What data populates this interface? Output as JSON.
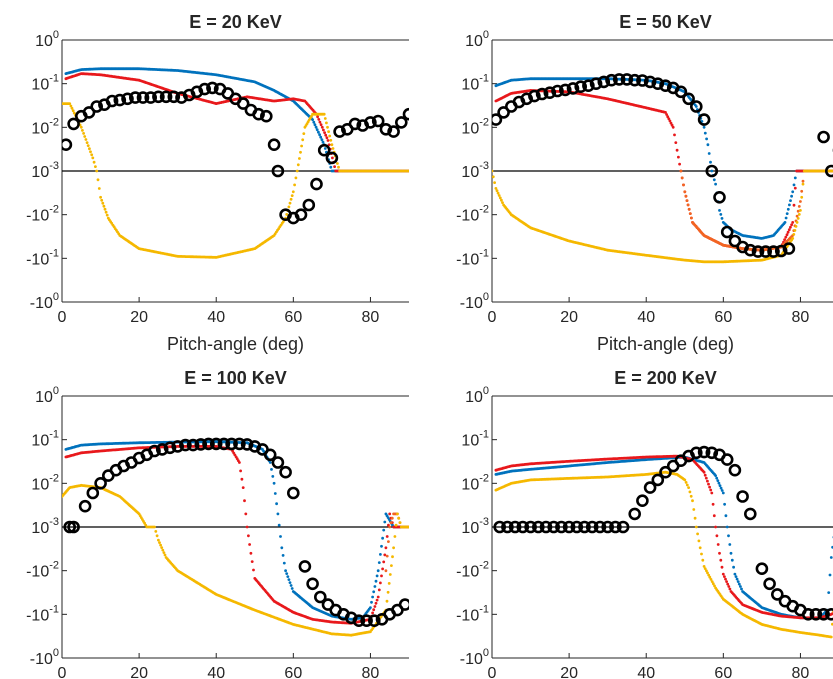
{
  "figure": {
    "xlabel": "Pitch-angle (deg)",
    "x_ticks": [
      "0",
      "20",
      "40",
      "60",
      "80"
    ],
    "y_ticks": [
      {
        "base": "10",
        "exp": "0"
      },
      {
        "base": "10",
        "exp": "-1"
      },
      {
        "base": "10",
        "exp": "-2"
      },
      {
        "base": "10",
        "exp": "-3"
      },
      {
        "base": "-10",
        "exp": "-2"
      },
      {
        "base": "-10",
        "exp": "-1"
      },
      {
        "base": "-10",
        "exp": "0"
      }
    ],
    "colors": {
      "blue": "#0072bd",
      "red": "#e8191c",
      "orange": "#f26522",
      "yellow": "#f5b800",
      "markers": "#000000",
      "zero_line": "#000000"
    }
  },
  "chart_data": [
    {
      "type": "scatter",
      "title": "E = 20 KeV",
      "xlabel": "Pitch-angle (deg)",
      "ylabel": "",
      "xlim": [
        0,
        90
      ],
      "ylim_log_symmetric": [
        -1,
        1
      ],
      "yscale": "symmetric log, linear threshold 1e-3",
      "series": [
        {
          "color": "blue",
          "style": "dots",
          "x": [
            1,
            5,
            10,
            20,
            30,
            40,
            50,
            55,
            60,
            65,
            68,
            70,
            90
          ],
          "y": [
            0.17,
            0.21,
            0.22,
            0.22,
            0.2,
            0.16,
            0.11,
            0.07,
            0.04,
            0.015,
            0.004,
            0.001,
            0.001
          ]
        },
        {
          "color": "red",
          "style": "dots",
          "x": [
            1,
            5,
            10,
            20,
            30,
            40,
            48,
            55,
            60,
            63,
            66,
            69,
            71,
            90
          ],
          "y": [
            0.13,
            0.17,
            0.16,
            0.12,
            0.06,
            0.035,
            0.05,
            0.04,
            0.045,
            0.04,
            0.02,
            0.005,
            0.001,
            0.001
          ]
        },
        {
          "color": "yellow",
          "style": "dots",
          "x": [
            0,
            2,
            5,
            8,
            9,
            10,
            12,
            15,
            20,
            30,
            40,
            50,
            55,
            58,
            60,
            61,
            63,
            65,
            68,
            70,
            72,
            90
          ],
          "y": [
            0.035,
            0.035,
            0.01,
            0.002,
            0.001,
            -0.004,
            -0.012,
            -0.03,
            -0.06,
            -0.09,
            -0.095,
            -0.06,
            -0.03,
            -0.012,
            -0.003,
            0.001,
            0.01,
            0.02,
            0.02,
            0.004,
            0.001,
            0.001
          ]
        },
        {
          "color": "markers",
          "style": "circles",
          "x": [
            1,
            3,
            5,
            7,
            9,
            11,
            13,
            15,
            17,
            19,
            21,
            23,
            25,
            27,
            29,
            31,
            33,
            35,
            37,
            39,
            41,
            43,
            45,
            47,
            49,
            51,
            53,
            55,
            56,
            58,
            60,
            62,
            64,
            66,
            68,
            70,
            72,
            74,
            76,
            78,
            80,
            82,
            84,
            86,
            88,
            90
          ],
          "y": [
            0.004,
            0.012,
            0.018,
            0.022,
            0.03,
            0.033,
            0.04,
            0.042,
            0.045,
            0.048,
            0.048,
            0.048,
            0.05,
            0.05,
            0.05,
            0.048,
            0.055,
            0.065,
            0.075,
            0.08,
            0.075,
            0.06,
            0.045,
            0.035,
            0.025,
            0.02,
            0.018,
            0.004,
            0.001,
            -0.01,
            -0.012,
            -0.01,
            -0.006,
            -0.002,
            0.003,
            0.002,
            0.008,
            0.009,
            0.012,
            0.011,
            0.013,
            0.014,
            0.009,
            0.008,
            0.013,
            0.02
          ]
        }
      ]
    },
    {
      "type": "scatter",
      "title": "E = 50 KeV",
      "xlabel": "Pitch-angle (deg)",
      "ylabel": "",
      "xlim": [
        0,
        90
      ],
      "ylim_log_symmetric": [
        -1,
        1
      ],
      "yscale": "symmetric log, linear threshold 1e-3",
      "series": [
        {
          "color": "blue",
          "style": "dots",
          "x": [
            1,
            5,
            10,
            20,
            30,
            40,
            45,
            50,
            53,
            55,
            56,
            57,
            58,
            59,
            60,
            62,
            65,
            70,
            73,
            76,
            78,
            79,
            90
          ],
          "y": [
            0.09,
            0.12,
            0.13,
            0.13,
            0.13,
            0.12,
            0.1,
            0.065,
            0.03,
            0.01,
            0.004,
            0.001,
            -0.002,
            -0.008,
            -0.015,
            -0.022,
            -0.03,
            -0.035,
            -0.03,
            -0.015,
            -0.003,
            0.001,
            0.001
          ]
        },
        {
          "color": "red",
          "style": "dots",
          "x": [
            1,
            5,
            10,
            20,
            30,
            40,
            45,
            47,
            48,
            49,
            50,
            52,
            55,
            60,
            65,
            70,
            75,
            78,
            79,
            90
          ],
          "y": [
            0.04,
            0.06,
            0.07,
            0.065,
            0.045,
            0.028,
            0.022,
            0.01,
            0.003,
            0.001,
            -0.003,
            -0.015,
            -0.03,
            -0.05,
            -0.06,
            -0.065,
            -0.055,
            -0.015,
            0.001,
            0.001
          ]
        },
        {
          "color": "orange",
          "style": "dots",
          "x": [
            49,
            50,
            52,
            55,
            60,
            65,
            70,
            75,
            78,
            80,
            81,
            90
          ],
          "y": [
            0.001,
            -0.003,
            -0.015,
            -0.03,
            -0.05,
            -0.06,
            -0.065,
            -0.055,
            -0.03,
            -0.005,
            0.001,
            0.001
          ]
        },
        {
          "color": "yellow",
          "style": "dots",
          "x": [
            0,
            1,
            3,
            5,
            10,
            20,
            30,
            40,
            50,
            55,
            60,
            70,
            75,
            78,
            80,
            81,
            82,
            90
          ],
          "y": [
            0.001,
            -0.0025,
            -0.006,
            -0.01,
            -0.02,
            -0.04,
            -0.065,
            -0.085,
            -0.11,
            -0.12,
            -0.12,
            -0.11,
            -0.085,
            -0.035,
            -0.008,
            0.001,
            0.001,
            0.001
          ]
        },
        {
          "color": "markers",
          "style": "circles",
          "x": [
            1,
            3,
            5,
            7,
            9,
            11,
            13,
            15,
            17,
            19,
            21,
            23,
            25,
            27,
            29,
            31,
            33,
            35,
            37,
            39,
            41,
            43,
            45,
            47,
            49,
            51,
            53,
            55,
            57,
            59,
            61,
            63,
            65,
            67,
            69,
            71,
            73,
            75,
            77,
            86,
            88,
            90
          ],
          "y": [
            0.015,
            0.022,
            0.03,
            0.038,
            0.045,
            0.052,
            0.058,
            0.062,
            0.068,
            0.072,
            0.078,
            0.085,
            0.09,
            0.1,
            0.11,
            0.12,
            0.125,
            0.125,
            0.12,
            0.118,
            0.11,
            0.1,
            0.09,
            0.08,
            0.065,
            0.045,
            0.03,
            0.015,
            0.001,
            -0.004,
            -0.025,
            -0.04,
            -0.055,
            -0.065,
            -0.07,
            -0.07,
            -0.07,
            -0.068,
            -0.06,
            0.006,
            0.001,
            0.003
          ]
        }
      ]
    },
    {
      "type": "scatter",
      "title": "E = 100 KeV",
      "xlabel": "Pitch-angle (deg)",
      "ylabel": "",
      "xlim": [
        0,
        90
      ],
      "ylim_log_symmetric": [
        -1,
        1
      ],
      "yscale": "symmetric log, linear threshold 1e-3",
      "series": [
        {
          "color": "blue",
          "style": "dots",
          "x": [
            1,
            5,
            10,
            20,
            30,
            40,
            48,
            52,
            54,
            55,
            56,
            57,
            58,
            60,
            65,
            70,
            75,
            78,
            80,
            82,
            84,
            86,
            88,
            90
          ],
          "y": [
            0.06,
            0.075,
            0.08,
            0.085,
            0.088,
            0.09,
            0.085,
            0.06,
            0.03,
            0.01,
            0.002,
            -0.003,
            -0.01,
            -0.03,
            -0.07,
            -0.11,
            -0.13,
            -0.12,
            -0.07,
            -0.01,
            0.002,
            0.001,
            0.001,
            0.001
          ]
        },
        {
          "color": "red",
          "style": "dots",
          "x": [
            1,
            5,
            10,
            20,
            30,
            40,
            44,
            46,
            47,
            48,
            49,
            50,
            55,
            60,
            65,
            70,
            75,
            80,
            82,
            84,
            85,
            86,
            88,
            90
          ],
          "y": [
            0.04,
            0.05,
            0.055,
            0.065,
            0.07,
            0.07,
            0.06,
            0.03,
            0.008,
            0.001,
            -0.004,
            -0.015,
            -0.05,
            -0.09,
            -0.13,
            -0.15,
            -0.16,
            -0.13,
            -0.04,
            -0.003,
            0.002,
            0.001,
            0.001,
            0.001
          ]
        },
        {
          "color": "orange",
          "style": "dots",
          "x": [
            84,
            85,
            86,
            87,
            88,
            90
          ],
          "y": [
            -0.01,
            0.001,
            0.002,
            0.002,
            0.001,
            0.001
          ]
        },
        {
          "color": "yellow",
          "style": "dots",
          "x": [
            0,
            2,
            5,
            10,
            15,
            20,
            22,
            23,
            24,
            25,
            27,
            30,
            40,
            50,
            60,
            70,
            75,
            80,
            84,
            86,
            87,
            88,
            90
          ],
          "y": [
            0.005,
            0.008,
            0.009,
            0.008,
            0.005,
            0.002,
            0.001,
            0.001,
            0.001,
            -0.002,
            -0.005,
            -0.01,
            -0.035,
            -0.08,
            -0.17,
            -0.28,
            -0.3,
            -0.25,
            -0.08,
            -0.003,
            0.002,
            0.001,
            0.001
          ]
        },
        {
          "color": "markers",
          "style": "circles",
          "x": [
            2,
            3,
            6,
            8,
            10,
            12,
            14,
            16,
            18,
            20,
            22,
            24,
            26,
            28,
            30,
            32,
            34,
            36,
            38,
            40,
            42,
            44,
            46,
            48,
            50,
            52,
            54,
            56,
            58,
            60,
            63,
            65,
            67,
            69,
            71,
            73,
            75,
            77,
            79,
            81,
            83,
            85,
            87,
            89
          ],
          "y": [
            0.001,
            0.001,
            0.003,
            0.006,
            0.01,
            0.015,
            0.02,
            0.025,
            0.03,
            0.038,
            0.045,
            0.055,
            0.06,
            0.065,
            0.07,
            0.075,
            0.075,
            0.078,
            0.08,
            0.08,
            0.08,
            0.08,
            0.08,
            0.078,
            0.07,
            0.06,
            0.045,
            0.03,
            0.018,
            0.006,
            -0.008,
            -0.02,
            -0.04,
            -0.06,
            -0.08,
            -0.1,
            -0.12,
            -0.14,
            -0.14,
            -0.14,
            -0.13,
            -0.1,
            -0.08,
            -0.06
          ]
        }
      ]
    },
    {
      "type": "scatter",
      "title": "E = 200 KeV",
      "xlabel": "Pitch-angle (deg)",
      "ylabel": "",
      "xlim": [
        0,
        90
      ],
      "ylim_log_symmetric": [
        -1,
        1
      ],
      "yscale": "symmetric log, linear threshold 1e-3",
      "series": [
        {
          "color": "blue",
          "style": "dots",
          "x": [
            1,
            5,
            10,
            20,
            30,
            40,
            50,
            55,
            58,
            60,
            61,
            62,
            63,
            65,
            70,
            75,
            80,
            85,
            87,
            88,
            89,
            90
          ],
          "y": [
            0.016,
            0.019,
            0.021,
            0.025,
            0.03,
            0.035,
            0.04,
            0.03,
            0.015,
            0.006,
            0.001,
            -0.004,
            -0.012,
            -0.03,
            -0.07,
            -0.1,
            -0.12,
            -0.12,
            -0.08,
            -0.005,
            0.001,
            0.001
          ]
        },
        {
          "color": "red",
          "style": "dots",
          "x": [
            1,
            5,
            10,
            20,
            30,
            40,
            48,
            52,
            55,
            57,
            58,
            59,
            60,
            62,
            65,
            70,
            75,
            80,
            85,
            88,
            90
          ],
          "y": [
            0.02,
            0.025,
            0.028,
            0.032,
            0.036,
            0.04,
            0.042,
            0.035,
            0.018,
            0.006,
            0.001,
            -0.004,
            -0.012,
            -0.03,
            -0.06,
            -0.09,
            -0.11,
            -0.12,
            -0.12,
            -0.1,
            -0.08
          ]
        },
        {
          "color": "yellow",
          "style": "dots",
          "x": [
            1,
            5,
            10,
            20,
            30,
            40,
            45,
            48,
            50,
            51,
            52,
            53,
            54,
            55,
            58,
            60,
            65,
            70,
            75,
            80,
            85,
            88,
            90
          ],
          "y": [
            0.007,
            0.01,
            0.012,
            0.013,
            0.014,
            0.016,
            0.018,
            0.016,
            0.012,
            0.008,
            0.004,
            0.001,
            -0.003,
            -0.008,
            -0.025,
            -0.045,
            -0.1,
            -0.17,
            -0.22,
            -0.26,
            -0.3,
            -0.33,
            -0.003
          ]
        },
        {
          "color": "markers",
          "style": "circles",
          "x": [
            2,
            4,
            6,
            8,
            10,
            12,
            14,
            16,
            18,
            20,
            22,
            24,
            26,
            28,
            30,
            32,
            34,
            37,
            39,
            41,
            43,
            45,
            47,
            49,
            51,
            53,
            55,
            57,
            59,
            61,
            63,
            65,
            67,
            70,
            72,
            74,
            76,
            78,
            80,
            82,
            84,
            86,
            88
          ],
          "y": [
            0.001,
            0.001,
            0.001,
            0.001,
            0.001,
            0.001,
            0.001,
            0.001,
            0.001,
            0.001,
            0.001,
            0.001,
            0.001,
            0.001,
            0.001,
            0.001,
            0.001,
            0.002,
            0.004,
            0.008,
            0.012,
            0.018,
            0.025,
            0.033,
            0.042,
            0.05,
            0.052,
            0.05,
            0.045,
            0.035,
            0.02,
            0.005,
            0.002,
            -0.009,
            -0.02,
            -0.035,
            -0.05,
            -0.065,
            -0.08,
            -0.1,
            -0.1,
            -0.1,
            -0.1
          ]
        }
      ]
    }
  ]
}
